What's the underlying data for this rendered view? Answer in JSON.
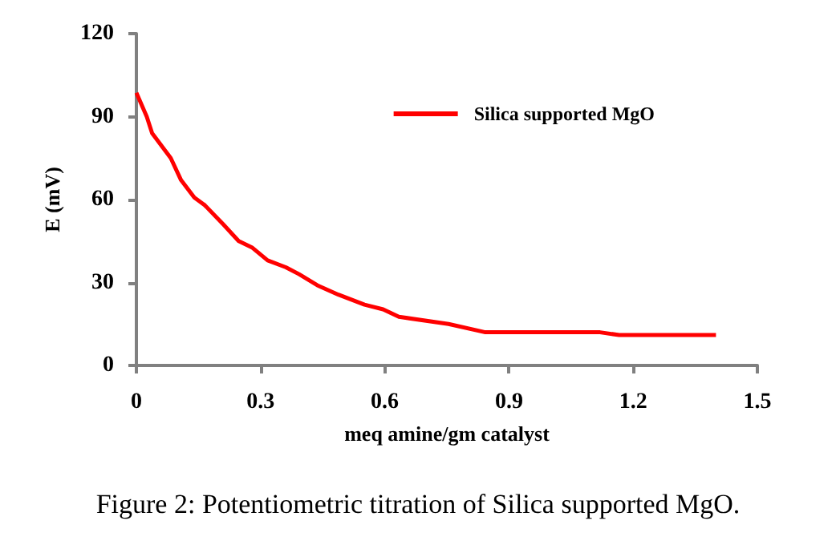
{
  "chart_data": {
    "type": "line",
    "xlabel": "meq amine/gm catalyst",
    "ylabel": "E (mV)",
    "x": [
      0,
      0.025,
      0.038,
      0.083,
      0.108,
      0.14,
      0.165,
      0.21,
      0.247,
      0.279,
      0.317,
      0.361,
      0.393,
      0.437,
      0.488,
      0.551,
      0.596,
      0.634,
      0.754,
      0.843,
      1.12,
      1.166,
      1.4
    ],
    "series": [
      {
        "name": "Silica supported MgO",
        "color": "#ff0000",
        "values": [
          98.6,
          90,
          84,
          75,
          67,
          60.7,
          58,
          51,
          45,
          42.7,
          38,
          35.5,
          33,
          29,
          25.6,
          22,
          20.3,
          17.6,
          15,
          12,
          12,
          11,
          11
        ]
      }
    ],
    "xlim": [
      0,
      1.5
    ],
    "xticks": [
      0,
      0.3,
      0.6,
      0.9,
      1.2,
      1.5
    ],
    "ylim": [
      0,
      120
    ],
    "yticks": [
      0,
      30,
      60,
      90,
      120
    ],
    "grid": false,
    "legend": "top right",
    "marker": "none",
    "line_style": "solid",
    "annotations": [
      "Figure 2: Potentiometric titration of Silica supported MgO."
    ]
  }
}
